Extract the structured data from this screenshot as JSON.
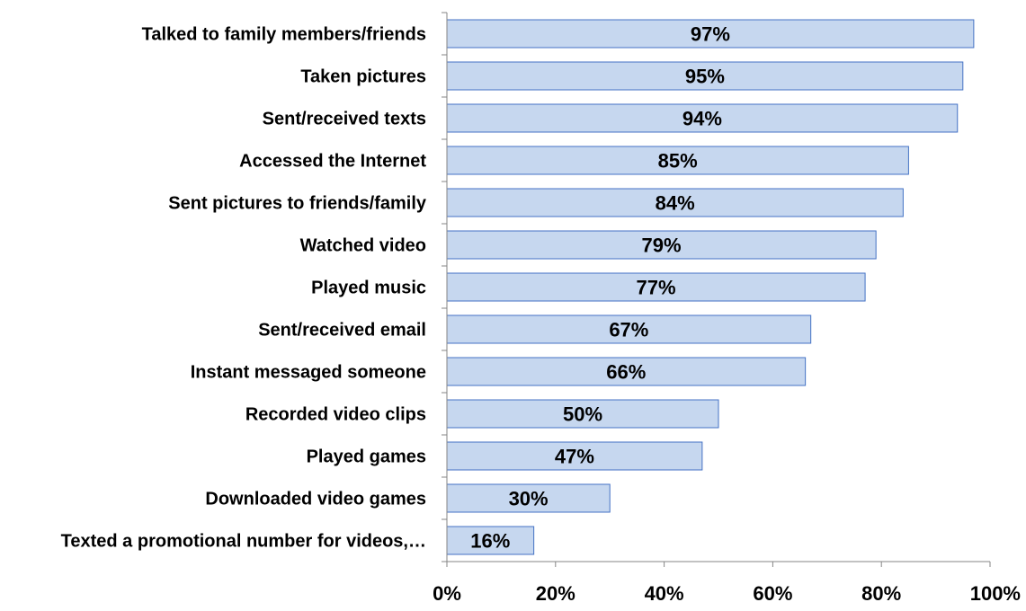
{
  "chart_data": {
    "type": "bar",
    "orientation": "horizontal",
    "categories": [
      "Talked to family members/friends",
      "Taken pictures",
      "Sent/received texts",
      "Accessed the Internet",
      "Sent pictures to friends/family",
      "Watched video",
      "Played music",
      "Sent/received email",
      "Instant messaged someone",
      "Recorded video clips",
      "Played games",
      "Downloaded video games",
      "Texted a promotional number for videos,…"
    ],
    "values": [
      97,
      95,
      94,
      85,
      84,
      79,
      77,
      67,
      66,
      50,
      47,
      30,
      16
    ],
    "value_labels": [
      "97%",
      "95%",
      "94%",
      "85%",
      "84%",
      "79%",
      "77%",
      "67%",
      "66%",
      "50%",
      "47%",
      "30%",
      "16%"
    ],
    "xlim": [
      0,
      100
    ],
    "xticks": [
      0,
      20,
      40,
      60,
      80,
      100
    ],
    "xtick_labels": [
      "0%",
      "20%",
      "40%",
      "60%",
      "80%",
      "100%"
    ],
    "title": "",
    "xlabel": "",
    "ylabel": "",
    "grid": false,
    "legend": "none",
    "colors": {
      "bar_fill": "#c6d7ef",
      "bar_stroke": "#4472c4",
      "axis": "#868686",
      "text": "#000000"
    }
  }
}
